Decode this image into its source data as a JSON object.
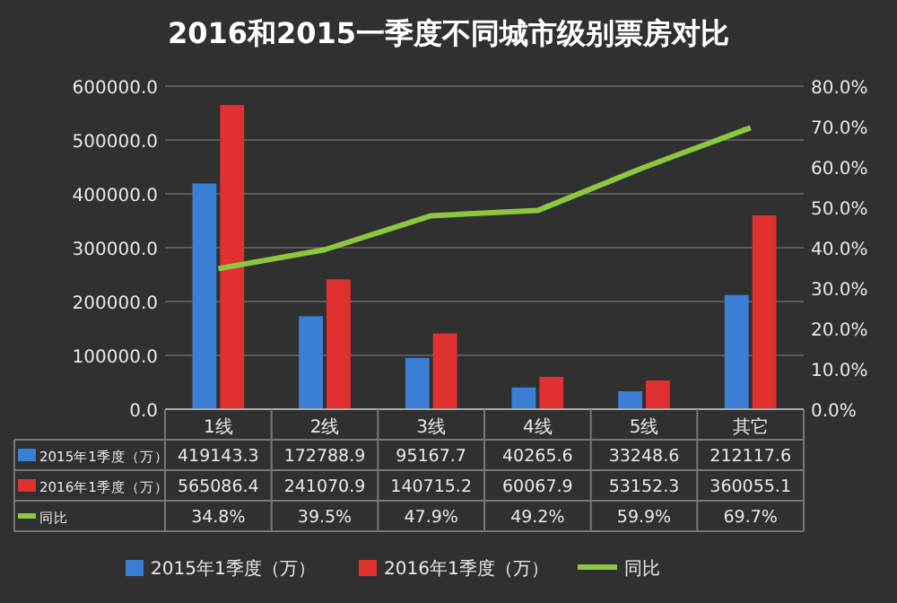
{
  "chart_data": {
    "type": "bar",
    "title": "2016和2015一季度不同城市级别票房对比",
    "categories": [
      "1线",
      "2线",
      "3线",
      "4线",
      "5线",
      "其它"
    ],
    "series": [
      {
        "name": "2015年1季度（万）",
        "color": "#3a7fd5",
        "values": [
          419143.3,
          172788.9,
          95167.7,
          40265.6,
          33248.6,
          212117.6
        ],
        "value_labels": [
          "419143.3",
          "172788.9",
          "95167.7",
          "40265.6",
          "33248.6",
          "212117.6"
        ]
      },
      {
        "name": "2016年1季度（万）",
        "color": "#e03030",
        "values": [
          565086.4,
          241070.9,
          140715.2,
          60067.9,
          53152.3,
          360055.1
        ],
        "value_labels": [
          "565086.4",
          "241070.9",
          "140715.2",
          "60067.9",
          "53152.3",
          "360055.1"
        ]
      },
      {
        "name": "同比",
        "type": "line",
        "axis": "y2",
        "color": "#8dc63f",
        "values": [
          34.8,
          39.5,
          47.9,
          49.2,
          59.9,
          69.7
        ],
        "value_labels": [
          "34.8%",
          "39.5%",
          "47.9%",
          "49.2%",
          "59.9%",
          "69.7%"
        ]
      }
    ],
    "ylim": [
      0,
      600000
    ],
    "yticks": [
      {
        "value": 0,
        "label": "0.0"
      },
      {
        "value": 100000,
        "label": "100000.0"
      },
      {
        "value": 200000,
        "label": "200000.0"
      },
      {
        "value": 300000,
        "label": "300000.0"
      },
      {
        "value": 400000,
        "label": "400000.0"
      },
      {
        "value": 500000,
        "label": "500000.0"
      },
      {
        "value": 600000,
        "label": "600000.0"
      }
    ],
    "y2lim": [
      0,
      80
    ],
    "y2ticks": [
      {
        "value": 0,
        "label": "0.0%"
      },
      {
        "value": 10,
        "label": "10.0%"
      },
      {
        "value": 20,
        "label": "20.0%"
      },
      {
        "value": 30,
        "label": "30.0%"
      },
      {
        "value": 40,
        "label": "40.0%"
      },
      {
        "value": 50,
        "label": "50.0%"
      },
      {
        "value": 60,
        "label": "60.0%"
      },
      {
        "value": 70,
        "label": "70.0%"
      },
      {
        "value": 80,
        "label": "80.0%"
      }
    ],
    "grid": "y",
    "legend": "bottom",
    "marker": "none"
  }
}
